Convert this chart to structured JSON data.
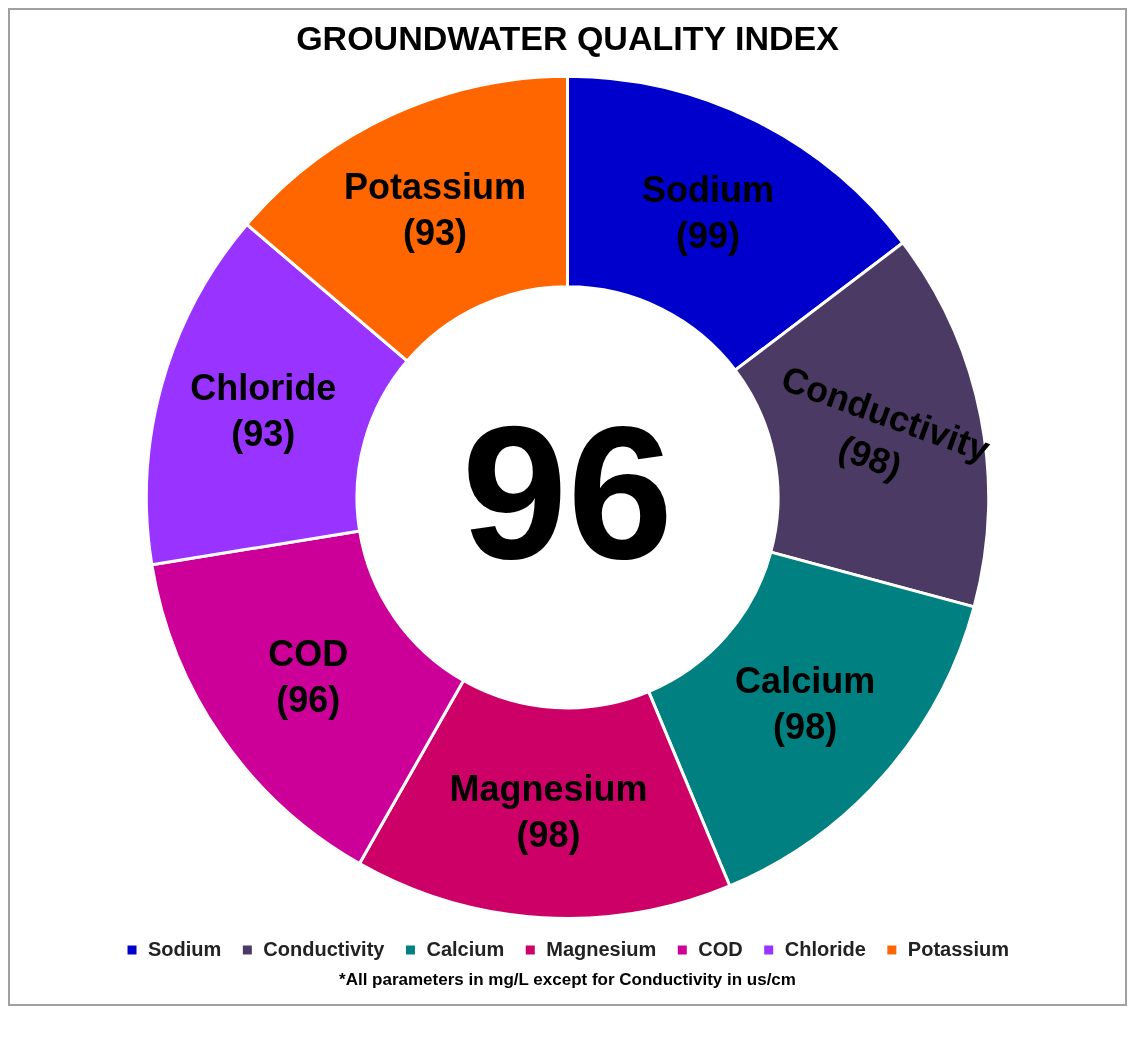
{
  "chart_data": {
    "type": "donut",
    "title": "GROUNDWATER QUALITY INDEX",
    "categories": [
      "Sodium",
      "Conductivity",
      "Calcium",
      "Magnesium",
      "COD",
      "Chloride",
      "Potassium"
    ],
    "values": [
      99,
      98,
      98,
      98,
      96,
      93,
      93
    ],
    "colors": [
      "#0000cc",
      "#4b3a63",
      "#008080",
      "#cc0066",
      "#cc0099",
      "#9933ff",
      "#ff6600"
    ],
    "value_labels": [
      "(99)",
      "(98)",
      "(98)",
      "(98)",
      "(96)",
      "(93)",
      "(93)"
    ],
    "legend": "bottom",
    "annotations": [
      "96",
      "*All parameters in mg/L except for Conductivity in us/cm"
    ]
  }
}
